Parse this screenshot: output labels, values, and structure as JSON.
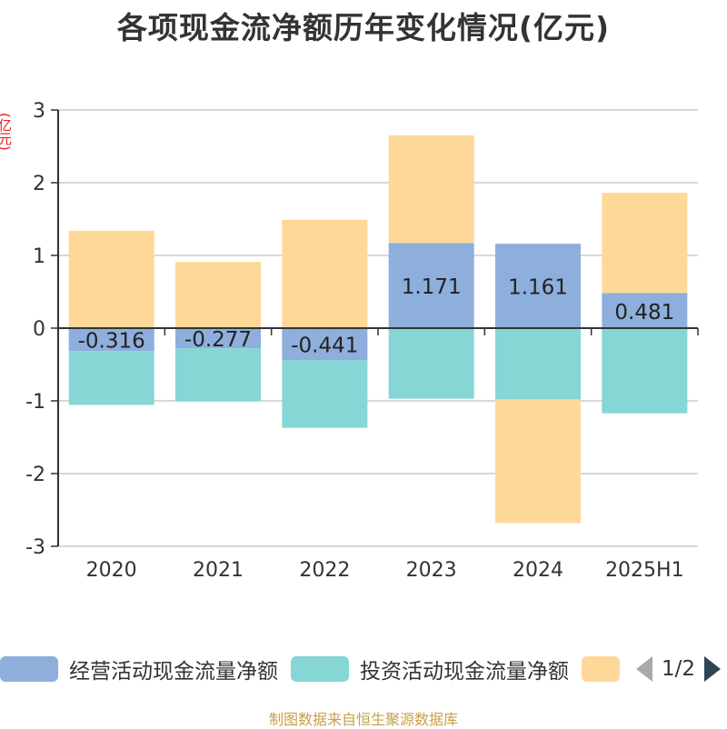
{
  "title": "各项现金流净额历年变化情况(亿元)",
  "unit_label": "(亿元)",
  "source": "制图数据来自恒生聚源数据库",
  "legend_pager": {
    "text": "1/2"
  },
  "colors": {
    "operating": "#8eaedb",
    "investing": "#87d6d6",
    "financing": "#fdd898",
    "axis": "#333333",
    "grid": "#cccccc",
    "text": "#333333"
  },
  "chart_data": {
    "type": "bar",
    "stacked": true,
    "categories": [
      "2020",
      "2021",
      "2022",
      "2023",
      "2024",
      "2025H1"
    ],
    "ylim": [
      -3,
      3
    ],
    "yticks": [
      3,
      2,
      1,
      0,
      -1,
      -2,
      -3
    ],
    "grid": true,
    "legend_position": "bottom",
    "series": [
      {
        "key": "operating",
        "name": "经营活动现金流量净额",
        "values": [
          -0.316,
          -0.277,
          -0.441,
          1.171,
          1.161,
          0.481
        ],
        "labels": [
          "-0.316",
          "-0.277",
          "-0.441",
          "1.171",
          "1.161",
          "0.481"
        ]
      },
      {
        "key": "investing",
        "name": "投资活动现金流量净额",
        "values": [
          -0.74,
          -0.73,
          -0.93,
          -0.97,
          -0.98,
          -1.17
        ]
      },
      {
        "key": "financing",
        "name": "",
        "values": [
          1.34,
          0.91,
          1.49,
          1.48,
          -1.7,
          1.38
        ]
      }
    ]
  }
}
